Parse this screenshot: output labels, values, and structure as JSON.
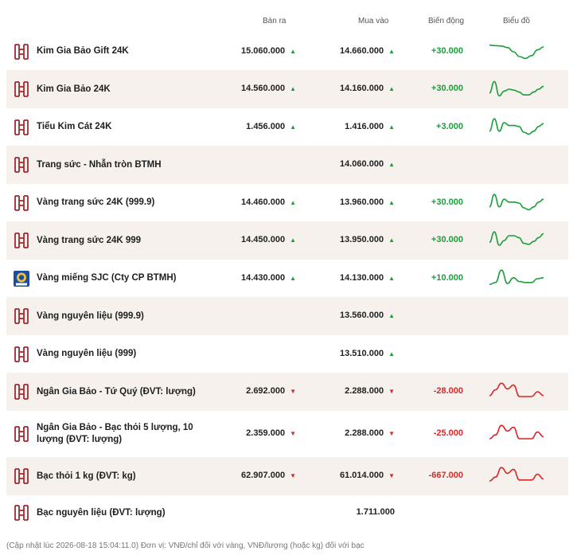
{
  "header": {
    "sell": "Bán ra",
    "buy": "Mua vào",
    "change": "Biến động",
    "chart": "Biểu đồ"
  },
  "colors": {
    "up": "#1a9e3a",
    "down": "#d92626",
    "brand": "#a4282f",
    "shaded_row": "#f6f1ec"
  },
  "rows": [
    {
      "name": "Kim Gia Bảo Gift 24K",
      "sell": "15.060.000",
      "sell_dir": "up",
      "buy": "14.660.000",
      "buy_dir": "up",
      "change": "+30.000",
      "change_dir": "up",
      "logo": "btmh-logo-icon",
      "trend": [
        0.85,
        0.82,
        0.8,
        0.72,
        0.5,
        0.25,
        0.15,
        0.3,
        0.6,
        0.75
      ]
    },
    {
      "name": "Kim Gia Bảo 24K",
      "sell": "14.560.000",
      "sell_dir": "up",
      "buy": "14.160.000",
      "buy_dir": "up",
      "change": "+30.000",
      "change_dir": "up",
      "logo": "btmh-logo-icon",
      "trend": [
        0.3,
        0.9,
        0.15,
        0.4,
        0.5,
        0.45,
        0.35,
        0.2,
        0.2,
        0.35,
        0.5,
        0.65
      ]
    },
    {
      "name": "Tiểu Kim Cát 24K",
      "sell": "1.456.000",
      "sell_dir": "up",
      "buy": "1.416.000",
      "buy_dir": "up",
      "change": "+3.000",
      "change_dir": "up",
      "logo": "btmh-logo-icon",
      "trend": [
        0.3,
        0.95,
        0.3,
        0.75,
        0.6,
        0.6,
        0.55,
        0.25,
        0.15,
        0.3,
        0.55,
        0.7
      ]
    },
    {
      "name": "Trang sức - Nhẫn tròn BTMH",
      "sell": "",
      "sell_dir": "",
      "buy": "14.060.000",
      "buy_dir": "up",
      "change": "",
      "change_dir": "",
      "logo": "btmh-logo-icon",
      "trend": []
    },
    {
      "name": "Vàng trang sức 24K (999.9)",
      "sell": "14.460.000",
      "sell_dir": "up",
      "buy": "13.960.000",
      "buy_dir": "up",
      "change": "+30.000",
      "change_dir": "up",
      "logo": "btmh-logo-icon",
      "trend": [
        0.3,
        0.95,
        0.3,
        0.7,
        0.55,
        0.55,
        0.5,
        0.25,
        0.15,
        0.3,
        0.55,
        0.7
      ]
    },
    {
      "name": "Vàng trang sức 24K 999",
      "sell": "14.450.000",
      "sell_dir": "up",
      "buy": "13.950.000",
      "buy_dir": "up",
      "change": "+30.000",
      "change_dir": "up",
      "logo": "btmh-logo-icon",
      "trend": [
        0.4,
        0.95,
        0.25,
        0.5,
        0.75,
        0.75,
        0.65,
        0.35,
        0.3,
        0.45,
        0.65,
        0.85
      ]
    },
    {
      "name": "Vàng miếng SJC (Cty CP BTMH)",
      "sell": "14.430.000",
      "sell_dir": "up",
      "buy": "14.130.000",
      "buy_dir": "up",
      "change": "+10.000",
      "change_dir": "up",
      "logo": "sjc-logo-icon",
      "trend": [
        0.2,
        0.3,
        0.95,
        0.25,
        0.55,
        0.35,
        0.3,
        0.3,
        0.5,
        0.55
      ]
    },
    {
      "name": "Vàng nguyên liệu (999.9)",
      "sell": "",
      "sell_dir": "",
      "buy": "13.560.000",
      "buy_dir": "up",
      "change": "",
      "change_dir": "",
      "logo": "btmh-logo-icon",
      "trend": []
    },
    {
      "name": "Vàng nguyên liệu (999)",
      "sell": "",
      "sell_dir": "",
      "buy": "13.510.000",
      "buy_dir": "up",
      "change": "",
      "change_dir": "",
      "logo": "btmh-logo-icon",
      "trend": []
    },
    {
      "name": "Ngân Gia Bảo - Tứ Quý (ĐVT: lượng)",
      "sell": "2.692.000",
      "sell_dir": "down",
      "buy": "2.288.000",
      "buy_dir": "down",
      "change": "-28.000",
      "change_dir": "down",
      "logo": "btmh-logo-icon",
      "trend": [
        0.3,
        0.6,
        0.95,
        0.65,
        0.85,
        0.25,
        0.25,
        0.25,
        0.5,
        0.3
      ]
    },
    {
      "name": "Ngân Gia Bảo - Bạc thỏi 5 lượng, 10 lượng (ĐVT: lượng)",
      "sell": "2.359.000",
      "sell_dir": "down",
      "buy": "2.288.000",
      "buy_dir": "down",
      "change": "-25.000",
      "change_dir": "down",
      "logo": "btmh-logo-icon",
      "trend": [
        0.25,
        0.45,
        0.95,
        0.65,
        0.85,
        0.25,
        0.25,
        0.25,
        0.6,
        0.35
      ]
    },
    {
      "name": "Bạc thỏi 1 kg (ĐVT: kg)",
      "sell": "62.907.000",
      "sell_dir": "down",
      "buy": "61.014.000",
      "buy_dir": "down",
      "change": "-667.000",
      "change_dir": "down",
      "logo": "btmh-logo-icon",
      "trend": [
        0.25,
        0.45,
        0.95,
        0.65,
        0.85,
        0.3,
        0.3,
        0.3,
        0.6,
        0.35
      ]
    },
    {
      "name": "Bạc nguyên liệu (ĐVT: lượng)",
      "sell": "",
      "sell_dir": "",
      "buy": "1.711.000",
      "buy_dir": "",
      "change": "",
      "change_dir": "",
      "logo": "btmh-logo-icon",
      "trend": []
    }
  ],
  "footer": "(Cập nhật lúc 2026-08-18 15:04:11.0)   Đơn vị: VNĐ/chỉ đối với vàng, VNĐ/lượng (hoặc kg) đối với bạc"
}
